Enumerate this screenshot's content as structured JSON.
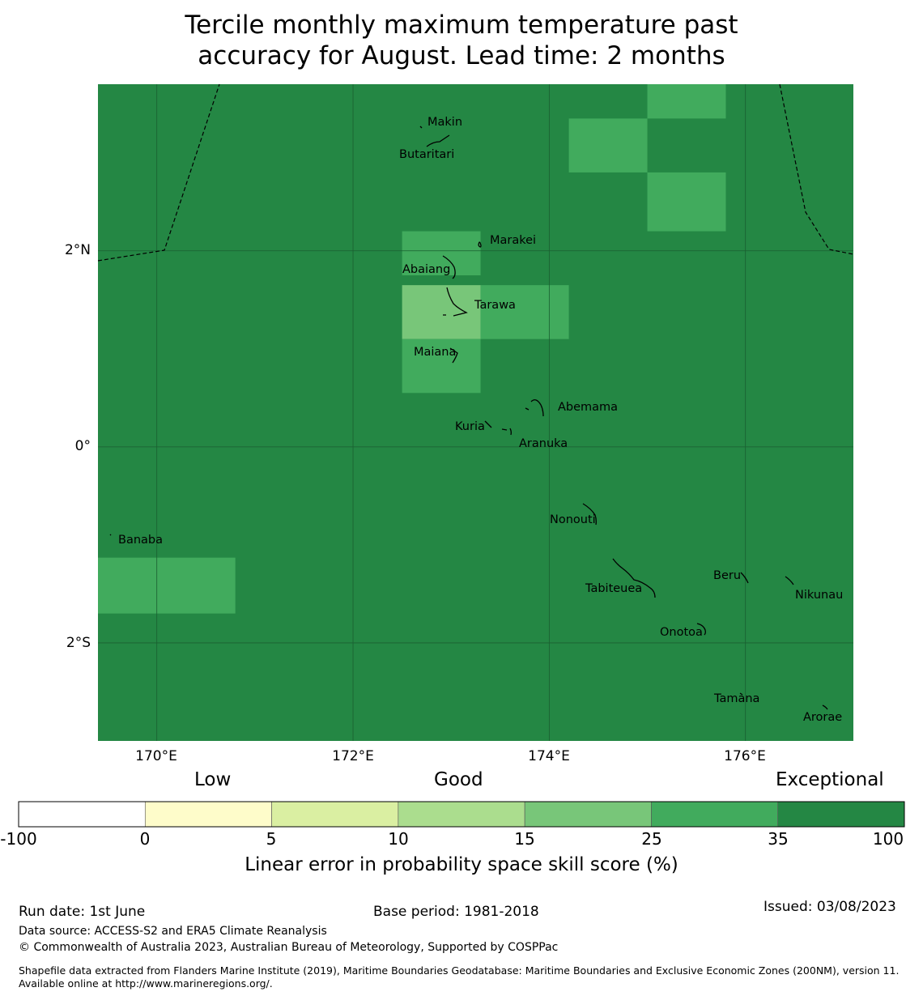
{
  "title": {
    "line1": "Tercile monthly maximum temperature past",
    "line2": "accuracy for August. Lead time: 2 months"
  },
  "map": {
    "ocean_color": "#248744",
    "lat_labels": [
      "2°N",
      "0°",
      "2°S"
    ],
    "lon_labels": [
      "170°E",
      "172°E",
      "174°E",
      "176°E"
    ],
    "latitudes": [
      2,
      0,
      -2
    ],
    "longitudes": [
      170,
      172,
      174,
      176
    ],
    "extent": {
      "lon_min": 169.4,
      "lon_max": 177.1,
      "lat_min": -3.0,
      "lat_max": 3.7
    },
    "skill_cells": [
      {
        "lon": [
          175.0,
          175.8
        ],
        "lat": [
          3.35,
          3.7
        ],
        "class": "25-35"
      },
      {
        "lon": [
          174.2,
          175.0
        ],
        "lat": [
          2.8,
          3.35
        ],
        "class": "25-35"
      },
      {
        "lon": [
          175.0,
          175.8
        ],
        "lat": [
          2.2,
          2.8
        ],
        "class": "25-35"
      },
      {
        "lon": [
          172.5,
          173.3
        ],
        "lat": [
          1.75,
          2.2
        ],
        "class": "25-35"
      },
      {
        "lon": [
          172.5,
          173.3
        ],
        "lat": [
          1.1,
          1.65
        ],
        "class": "15-25"
      },
      {
        "lon": [
          173.3,
          174.2
        ],
        "lat": [
          1.1,
          1.65
        ],
        "class": "25-35"
      },
      {
        "lon": [
          172.5,
          173.3
        ],
        "lat": [
          0.55,
          1.1
        ],
        "class": "25-35"
      },
      {
        "lon": [
          169.4,
          170.8
        ],
        "lat": [
          -1.7,
          -1.13
        ],
        "class": "25-35"
      }
    ],
    "islands": [
      {
        "name": "Makin"
      },
      {
        "name": "Butaritari"
      },
      {
        "name": "Marakei"
      },
      {
        "name": "Abaiang"
      },
      {
        "name": "Tarawa"
      },
      {
        "name": "Maiana"
      },
      {
        "name": "Abemama"
      },
      {
        "name": "Kuria"
      },
      {
        "name": "Aranuka"
      },
      {
        "name": "Nonouti"
      },
      {
        "name": "Banaba"
      },
      {
        "name": "Tabiteuea"
      },
      {
        "name": "Beru"
      },
      {
        "name": "Nikunau"
      },
      {
        "name": "Onotoa"
      },
      {
        "name": "Tamana"
      },
      {
        "name": "Arorae"
      }
    ]
  },
  "legend": {
    "categories": [
      "Low",
      "Good",
      "Exceptional"
    ],
    "ticks": [
      "-100",
      "0",
      "5",
      "10",
      "15",
      "25",
      "35",
      "100"
    ],
    "bins": [
      {
        "range": "-100 to 0",
        "color": "#ffffff"
      },
      {
        "range": "0 to 5",
        "color": "#fefcca"
      },
      {
        "range": "5 to 10",
        "color": "#daefa2"
      },
      {
        "range": "10 to 15",
        "color": "#abdd8e"
      },
      {
        "range": "15 to 25",
        "color": "#78c679"
      },
      {
        "range": "25 to 35",
        "color": "#41ab5d"
      },
      {
        "range": "35 to 100",
        "color": "#248744"
      }
    ],
    "title": "Linear error in probability space skill score (%)"
  },
  "footer": {
    "run_date": "Run date: 1st June",
    "base_period": "Base period: 1981-2018",
    "issued": "Issued: 03/08/2023",
    "data_source": "Data source: ACCESS-S2 and ERA5 Climate Reanalysis",
    "copyright": "© Commonwealth of Australia 2023, Australian Bureau of Meteorology, Supported by COSPPac",
    "shapefile": "Shapefile data extracted from Flanders Marine Institute (2019), Maritime Boundaries Geodatabase: Maritime Boundaries and Exclusive Economic Zones (200NM), version 11. Available online at http://www.marineregions.org/."
  }
}
